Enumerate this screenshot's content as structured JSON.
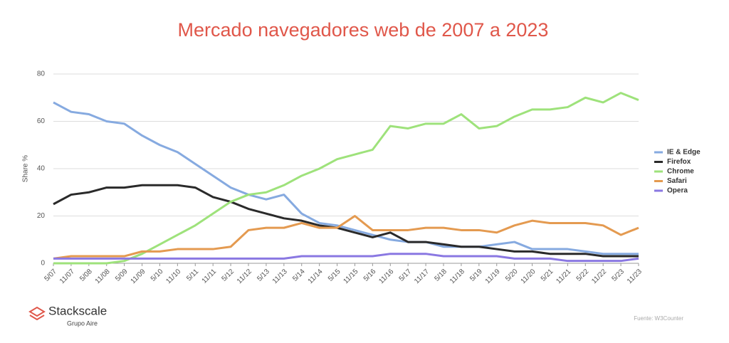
{
  "chart_data": {
    "type": "line",
    "title": "Mercado navegadores web de 2007 a 2023",
    "ylabel": "Share %",
    "categories": [
      "5/07",
      "11/07",
      "5/08",
      "11/08",
      "5/09",
      "11/09",
      "5/10",
      "11/10",
      "5/11",
      "11/11",
      "5/12",
      "11/12",
      "5/13",
      "11/13",
      "5/14",
      "11/14",
      "5/15",
      "11/15",
      "5/16",
      "11/16",
      "5/17",
      "11/17",
      "5/18",
      "11/18",
      "5/19",
      "11/19",
      "5/20",
      "11/20",
      "5/21",
      "11/21",
      "5/22",
      "11/22",
      "5/23",
      "11/23"
    ],
    "series": [
      {
        "name": "IE & Edge",
        "color": "#86aae0",
        "values": [
          68,
          64,
          63,
          60,
          59,
          54,
          50,
          47,
          42,
          37,
          32,
          29,
          27,
          29,
          21,
          17,
          16,
          14,
          12,
          10,
          9,
          9,
          7,
          7,
          7,
          8,
          9,
          6,
          6,
          6,
          5,
          4,
          4,
          4
        ]
      },
      {
        "name": "Firefox",
        "color": "#2a2a2a",
        "values": [
          25,
          29,
          30,
          32,
          32,
          33,
          33,
          33,
          32,
          28,
          26,
          23,
          21,
          19,
          18,
          16,
          15,
          13,
          11,
          13,
          9,
          9,
          8,
          7,
          7,
          6,
          5,
          5,
          4,
          4,
          4,
          3,
          3,
          3
        ]
      },
      {
        "name": "Chrome",
        "color": "#9ee27b",
        "values": [
          0,
          0,
          0,
          0,
          1,
          4,
          8,
          12,
          16,
          21,
          26,
          29,
          30,
          33,
          37,
          40,
          44,
          46,
          48,
          58,
          57,
          59,
          59,
          63,
          57,
          58,
          62,
          65,
          65,
          66,
          70,
          68,
          72,
          69
        ]
      },
      {
        "name": "Safari",
        "color": "#e49a50",
        "values": [
          2,
          3,
          3,
          3,
          3,
          5,
          5,
          6,
          6,
          6,
          7,
          14,
          15,
          15,
          17,
          15,
          15,
          20,
          14,
          14,
          14,
          15,
          15,
          14,
          14,
          13,
          16,
          18,
          17,
          17,
          17,
          16,
          12,
          15
        ]
      },
      {
        "name": "Opera",
        "color": "#8a78e2",
        "values": [
          2,
          2,
          2,
          2,
          2,
          2,
          2,
          2,
          2,
          2,
          2,
          2,
          2,
          2,
          3,
          3,
          3,
          3,
          3,
          4,
          4,
          4,
          3,
          3,
          3,
          3,
          2,
          2,
          2,
          1,
          1,
          1,
          1,
          2
        ]
      }
    ],
    "ylim": [
      0,
      80
    ],
    "yticks": [
      0,
      20,
      40,
      60,
      80
    ],
    "grid": true,
    "legend": "right"
  },
  "branding": {
    "name": "Stackscale",
    "tagline": "Grupo Aire",
    "source": "Fuente: W3Counter"
  }
}
